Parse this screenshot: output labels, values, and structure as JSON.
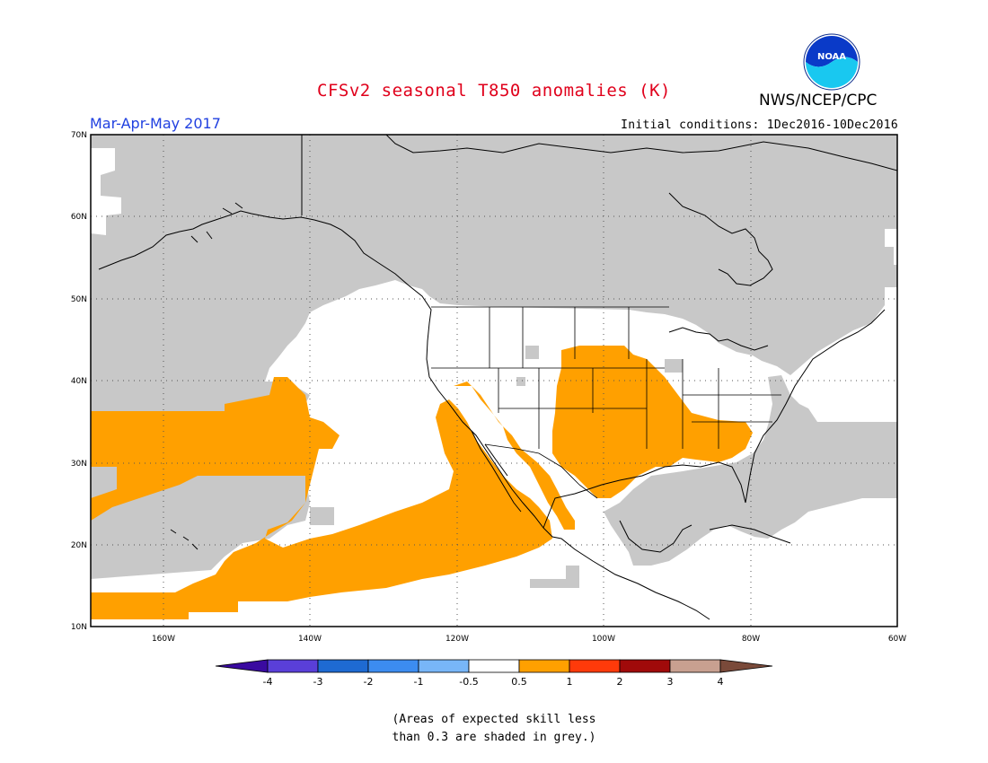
{
  "header": {
    "title": "CFSv2 seasonal T850 anomalies (K)",
    "agency": "NWS/NCEP/CPC",
    "logo_text": "NOAA",
    "season": "Mar-Apr-May 2017",
    "initial_conditions": "Initial conditions: 1Dec2016-10Dec2016"
  },
  "map": {
    "lon_range": [
      -172,
      -60
    ],
    "lat_range": [
      10,
      70
    ],
    "lat_ticks": [
      "70N",
      "60N",
      "50N",
      "40N",
      "30N",
      "20N",
      "10N"
    ],
    "lon_ticks": [
      "160W",
      "140W",
      "120W",
      "100W",
      "80W",
      "60W"
    ],
    "colors": {
      "low_skill": "#c8c8c8",
      "warm_anomaly": "#ffa000",
      "ocean_neutral": "#ffffff"
    }
  },
  "colorbar": {
    "tick_labels": [
      "-4",
      "-3",
      "-2",
      "-1",
      "-0.5",
      "0.5",
      "1",
      "2",
      "3",
      "4"
    ],
    "colors": [
      "#3a0aa0",
      "#5a3fd8",
      "#1e6ad2",
      "#3c8cf0",
      "#78b6f8",
      "#ffffff",
      "#ffa000",
      "#ff3a0a",
      "#a00a0a",
      "#c8a090",
      "#7a4a3a"
    ]
  },
  "note": {
    "line1": "(Areas of expected skill less",
    "line2": "than 0.3 are shaded in grey.)"
  }
}
